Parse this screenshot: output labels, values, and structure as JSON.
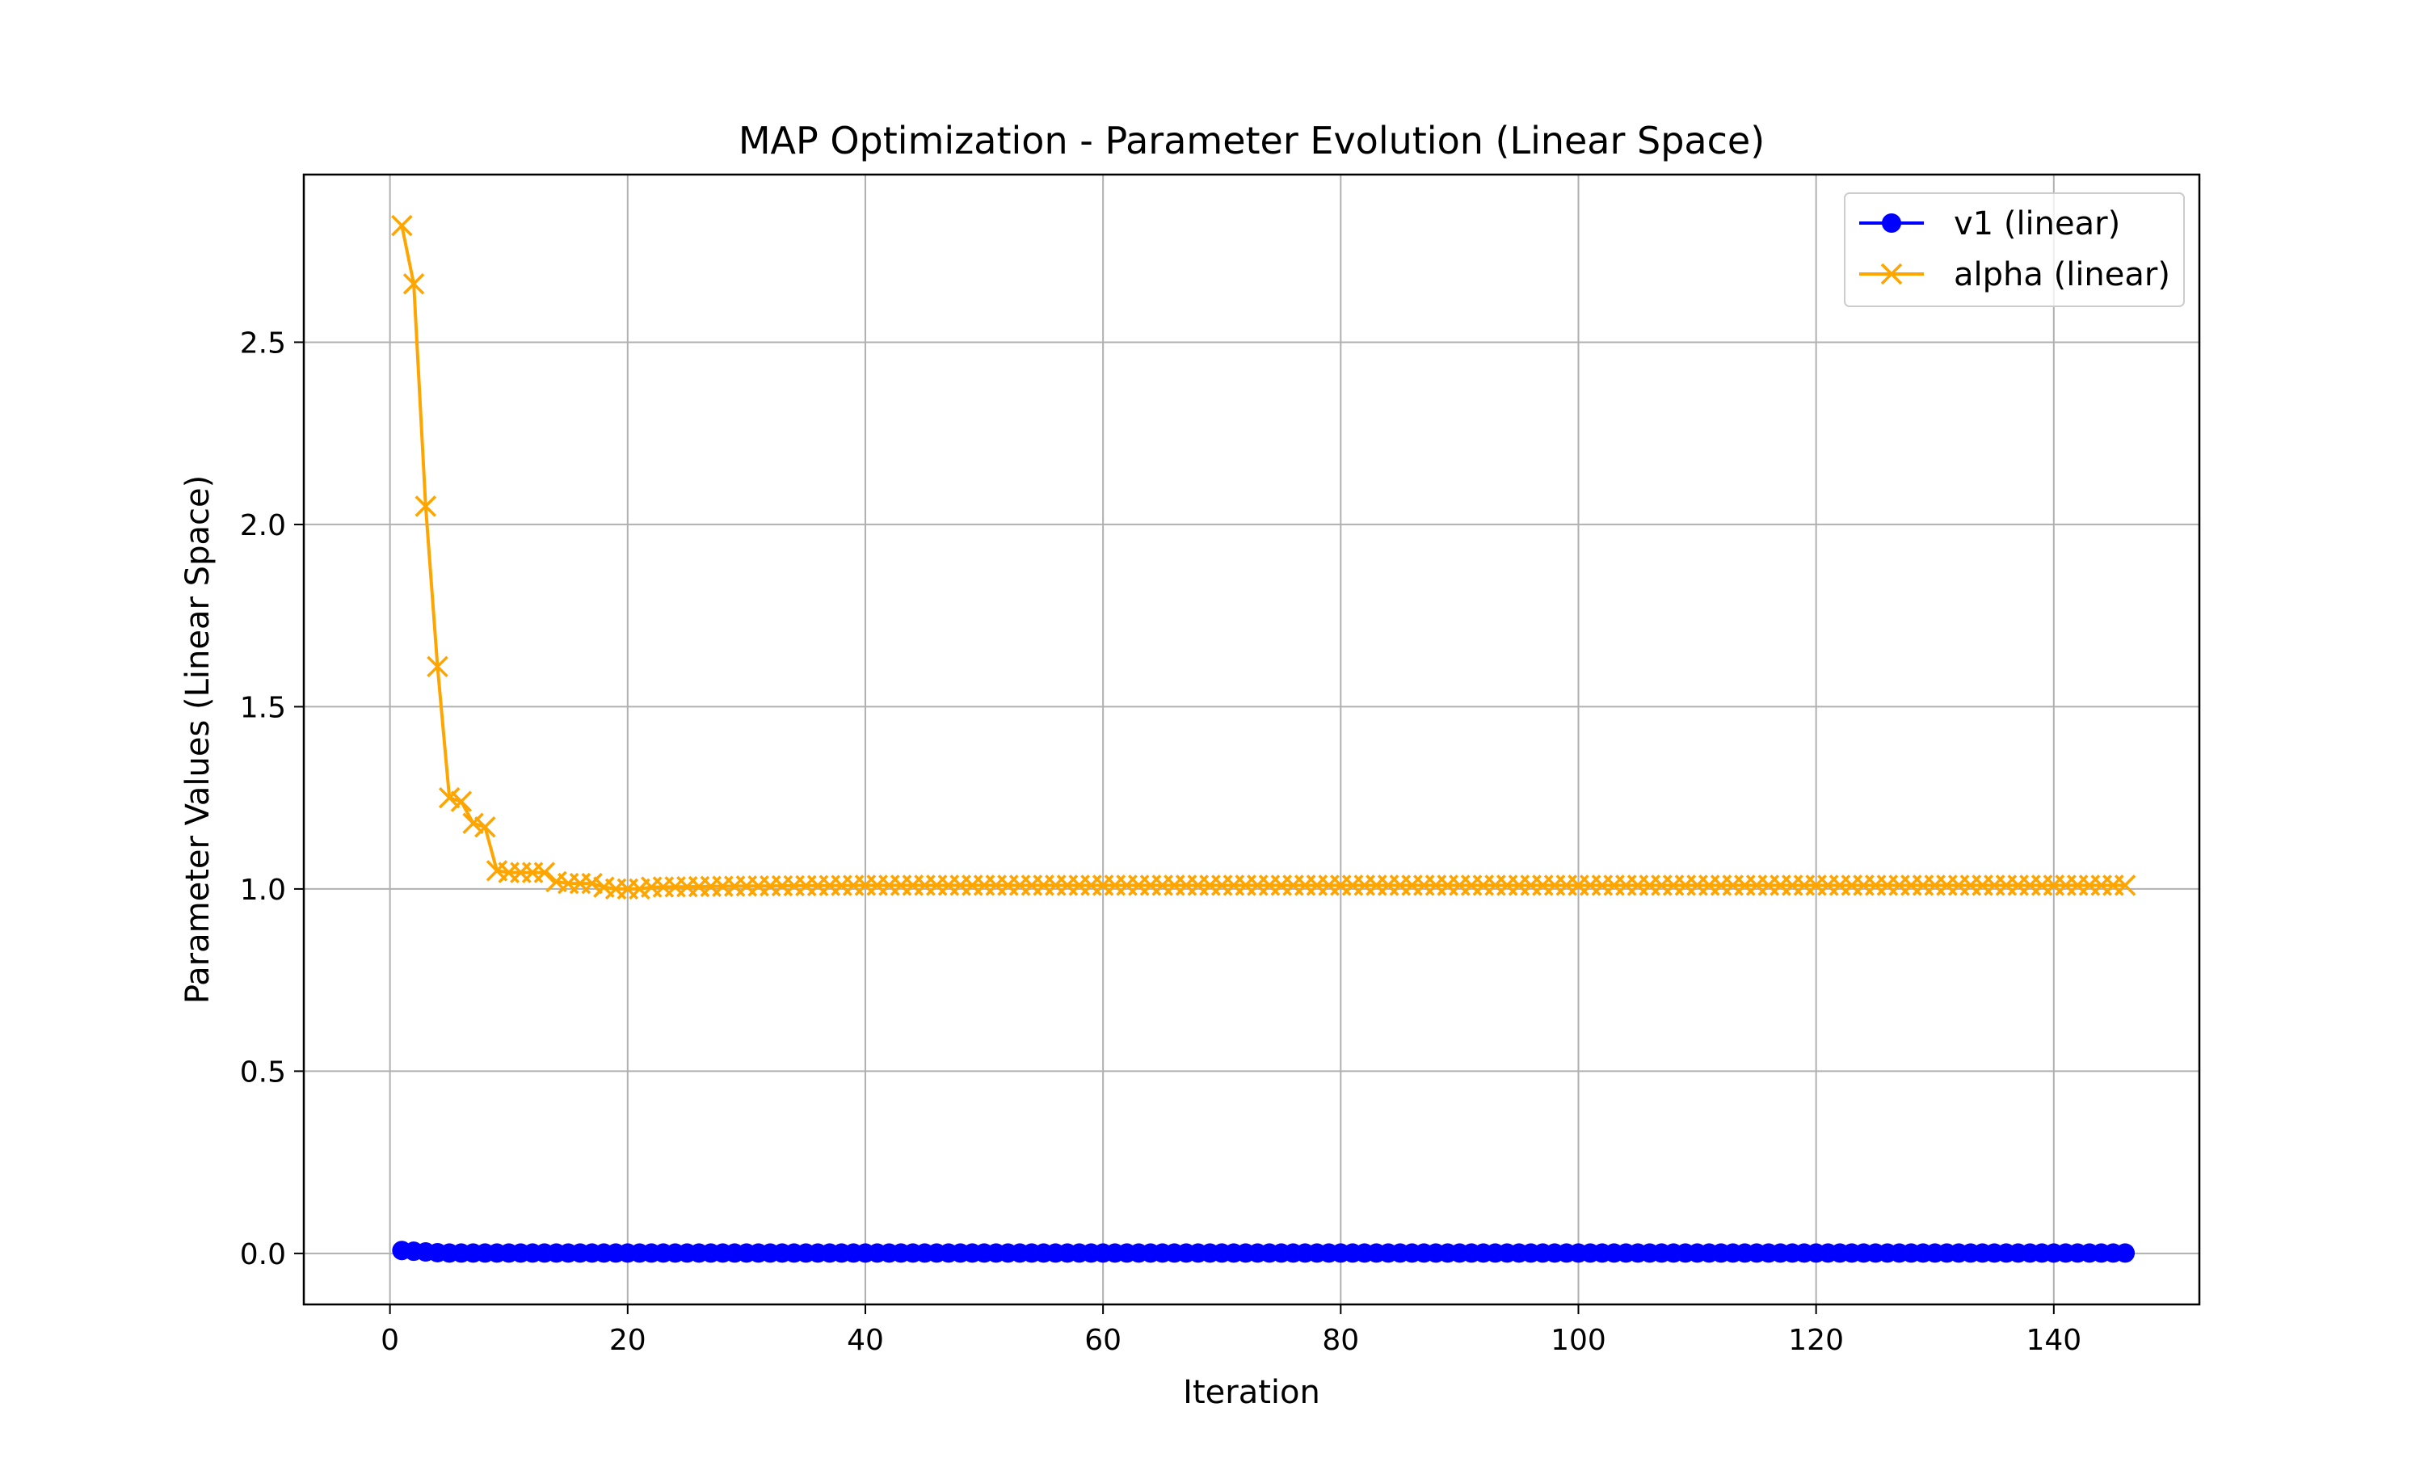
{
  "chart_data": {
    "type": "line",
    "title": "MAP Optimization - Parameter Evolution (Linear Space)",
    "xlabel": "Iteration",
    "ylabel": "Parameter Values (Linear Space)",
    "xlim": [
      -7.25,
      152.25
    ],
    "ylim": [
      -0.14,
      2.96
    ],
    "xticks": [
      0,
      20,
      40,
      60,
      80,
      100,
      120,
      140
    ],
    "xtick_labels": [
      "0",
      "20",
      "40",
      "60",
      "80",
      "100",
      "120",
      "140"
    ],
    "yticks": [
      0.0,
      0.5,
      1.0,
      1.5,
      2.0,
      2.5
    ],
    "ytick_labels": [
      "0.0",
      "0.5",
      "1.0",
      "1.5",
      "2.0",
      "2.5"
    ],
    "grid": true,
    "legend_position": "top-right",
    "legend": [
      "v1 (linear)",
      "alpha (linear)"
    ],
    "series": [
      {
        "name": "v1 (linear)",
        "color": "#0000ff",
        "marker": "circle",
        "x_start": 1,
        "x_end": 146,
        "points": [
          [
            1,
            0.008
          ],
          [
            2,
            0.006
          ],
          [
            3,
            0.004
          ],
          [
            4,
            0.002
          ],
          [
            5,
            0.001
          ],
          [
            146,
            0.001
          ]
        ]
      },
      {
        "name": "alpha (linear)",
        "color": "#ffa500",
        "marker": "x",
        "x_start": 1,
        "x_end": 146,
        "points": [
          [
            1,
            2.82
          ],
          [
            2,
            2.66
          ],
          [
            3,
            2.05
          ],
          [
            4,
            1.61
          ],
          [
            5,
            1.25
          ],
          [
            6,
            1.24
          ],
          [
            7,
            1.18
          ],
          [
            8,
            1.17
          ],
          [
            9,
            1.05
          ],
          [
            10,
            1.045
          ],
          [
            11,
            1.045
          ],
          [
            12,
            1.045
          ],
          [
            13,
            1.045
          ],
          [
            14,
            1.02
          ],
          [
            15,
            1.015
          ],
          [
            16,
            1.015
          ],
          [
            17,
            1.015
          ],
          [
            18,
            1.005
          ],
          [
            19,
            1.0
          ],
          [
            20,
            1.0
          ],
          [
            21,
            1.0
          ],
          [
            22,
            1.005
          ],
          [
            30,
            1.008
          ],
          [
            40,
            1.01
          ],
          [
            146,
            1.01
          ]
        ]
      }
    ]
  }
}
